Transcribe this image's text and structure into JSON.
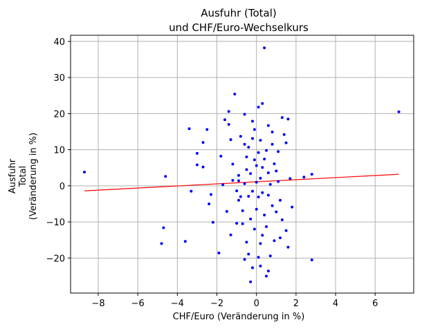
{
  "chart_data": {
    "type": "scatter",
    "title": [
      "Ausfuhr (Total)",
      "und CHF/Euro-Wechselkurs"
    ],
    "xlabel": "CHF/Euro (Veränderung in %)",
    "ylabel": [
      "Ausfuhr",
      "Total",
      "(Veränderung in %)"
    ],
    "xlim": [
      -9.4,
      7.95
    ],
    "ylim": [
      -29.7,
      41.7
    ],
    "xticks": [
      -8,
      -6,
      -4,
      -2,
      0,
      2,
      4,
      6
    ],
    "yticks": [
      -20,
      -10,
      0,
      10,
      20,
      30,
      40
    ],
    "xtick_labels": [
      "−8",
      "−6",
      "−4",
      "−2",
      "0",
      "2",
      "4",
      "6"
    ],
    "ytick_labels": [
      "−20",
      "−10",
      "0",
      "10",
      "20",
      "30",
      "40"
    ],
    "grid": true,
    "colors": {
      "points": "#0000ff",
      "trend": "#ff0000",
      "grid": "#b0b0b0",
      "axes": "#000000"
    },
    "trend_line": {
      "x": [
        -8.7,
        7.2
      ],
      "y": [
        -1.4,
        3.2
      ]
    },
    "points": [
      [
        -8.7,
        3.8
      ],
      [
        -4.8,
        -16.0
      ],
      [
        -4.7,
        -11.6
      ],
      [
        -4.6,
        2.6
      ],
      [
        -3.6,
        -15.4
      ],
      [
        -3.4,
        15.8
      ],
      [
        -3.3,
        -1.5
      ],
      [
        -3.0,
        9.0
      ],
      [
        -3.0,
        5.8
      ],
      [
        -2.7,
        12.0
      ],
      [
        -2.7,
        5.2
      ],
      [
        -2.5,
        15.6
      ],
      [
        -2.4,
        -5.0
      ],
      [
        -2.3,
        -2.4
      ],
      [
        -2.2,
        -10.1
      ],
      [
        -1.9,
        -18.6
      ],
      [
        -1.7,
        0.3
      ],
      [
        -1.6,
        18.3
      ],
      [
        -1.4,
        20.6
      ],
      [
        -1.4,
        17.0
      ],
      [
        -1.3,
        -13.6
      ],
      [
        -1.2,
        1.5
      ],
      [
        -1.1,
        25.4
      ],
      [
        -1.0,
        -10.4
      ],
      [
        -0.9,
        -4.0
      ],
      [
        -0.8,
        -3.0
      ],
      [
        -0.7,
        -10.5
      ],
      [
        -0.6,
        19.8
      ],
      [
        -0.6,
        11.5
      ],
      [
        -0.5,
        8.0
      ],
      [
        -0.5,
        4.5
      ],
      [
        -0.4,
        -2.9
      ],
      [
        -0.4,
        -18.9
      ],
      [
        -0.3,
        -26.6
      ],
      [
        -0.2,
        17.9
      ],
      [
        -0.2,
        -1.5
      ],
      [
        -0.1,
        15.6
      ],
      [
        -0.1,
        7.2
      ],
      [
        0.0,
        -6.5
      ],
      [
        0.0,
        1.0
      ],
      [
        0.1,
        21.8
      ],
      [
        0.1,
        -3.1
      ],
      [
        0.2,
        -16.0
      ],
      [
        0.3,
        22.8
      ],
      [
        0.3,
        5.1
      ],
      [
        0.3,
        -13.7
      ],
      [
        0.4,
        38.2
      ],
      [
        0.4,
        -8.1
      ],
      [
        0.5,
        9.8
      ],
      [
        0.6,
        16.7
      ],
      [
        0.6,
        -23.6
      ],
      [
        0.7,
        0.4
      ],
      [
        0.8,
        11.5
      ],
      [
        0.8,
        -5.5
      ],
      [
        0.9,
        -15.2
      ],
      [
        1.0,
        4.1
      ],
      [
        1.1,
        9.5
      ],
      [
        1.2,
        -4.0
      ],
      [
        1.3,
        18.9
      ],
      [
        1.3,
        -9.4
      ],
      [
        1.4,
        14.2
      ],
      [
        1.5,
        11.9
      ],
      [
        1.5,
        -12.4
      ],
      [
        1.6,
        18.5
      ],
      [
        1.6,
        -17.0
      ],
      [
        1.7,
        2.0
      ],
      [
        1.8,
        -5.9
      ],
      [
        2.4,
        2.4
      ],
      [
        2.8,
        3.2
      ],
      [
        2.8,
        -20.5
      ],
      [
        7.2,
        20.5
      ],
      [
        -1.8,
        8.2
      ],
      [
        -1.5,
        -7.1
      ],
      [
        -1.3,
        12.8
      ],
      [
        -1.2,
        6.0
      ],
      [
        -1.0,
        -1.4
      ],
      [
        -0.9,
        2.9
      ],
      [
        -0.8,
        13.7
      ],
      [
        -0.7,
        -6.9
      ],
      [
        -0.6,
        0.6
      ],
      [
        -0.5,
        -15.6
      ],
      [
        -0.4,
        10.7
      ],
      [
        -0.3,
        3.4
      ],
      [
        -0.3,
        -9.2
      ],
      [
        -0.2,
        13.1
      ],
      [
        -0.1,
        -12.0
      ],
      [
        0.0,
        5.6
      ],
      [
        0.1,
        9.2
      ],
      [
        0.1,
        -19.8
      ],
      [
        0.2,
        2.1
      ],
      [
        0.2,
        12.6
      ],
      [
        0.3,
        -1.9
      ],
      [
        0.4,
        7.4
      ],
      [
        0.5,
        -11.3
      ],
      [
        0.6,
        3.6
      ],
      [
        0.7,
        -19.4
      ],
      [
        0.8,
        14.9
      ],
      [
        0.9,
        6.1
      ],
      [
        1.0,
        -7.2
      ],
      [
        1.1,
        1.2
      ],
      [
        1.2,
        -14.4
      ],
      [
        -0.6,
        -20.4
      ],
      [
        -0.2,
        -22.7
      ],
      [
        0.2,
        -22.2
      ],
      [
        0.5,
        -25.0
      ],
      [
        -0.9,
        1.4
      ],
      [
        0.6,
        -2.6
      ]
    ]
  }
}
